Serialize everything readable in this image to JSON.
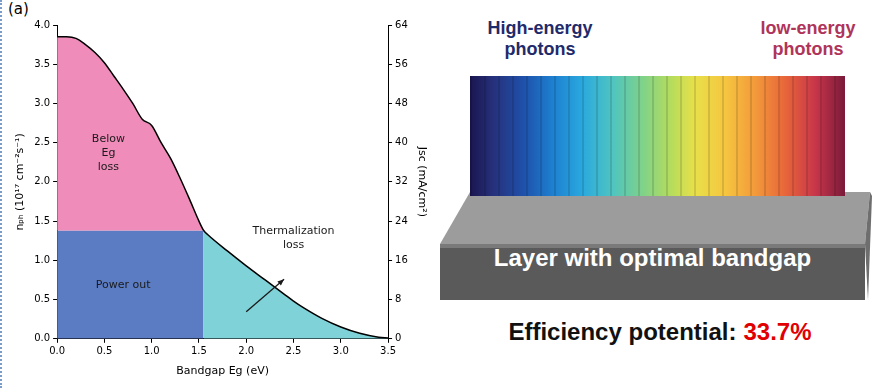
{
  "chart_data": {
    "type": "line",
    "panel_label": "(a)",
    "x": [
      0.0,
      0.1,
      0.2,
      0.3,
      0.4,
      0.5,
      0.6,
      0.7,
      0.8,
      0.9,
      1.0,
      1.1,
      1.2,
      1.3,
      1.4,
      1.5,
      1.55,
      1.6,
      1.8,
      2.0,
      2.2,
      2.4,
      2.5,
      2.6,
      2.8,
      3.0,
      3.2,
      3.4,
      3.5
    ],
    "values": [
      3.85,
      3.85,
      3.83,
      3.75,
      3.65,
      3.52,
      3.35,
      3.18,
      3.0,
      2.8,
      2.72,
      2.5,
      2.3,
      2.05,
      1.78,
      1.5,
      1.38,
      1.32,
      1.12,
      0.93,
      0.75,
      0.57,
      0.48,
      0.4,
      0.26,
      0.15,
      0.07,
      0.02,
      0.01
    ],
    "color": "#000000",
    "line_style": "solid",
    "xlabel": "Bandgap Eg (eV)",
    "ylabel": "nₚₕ (10¹⁷ cm⁻²s⁻¹)",
    "y2label": "Jsc (mA/cm²)",
    "xlim": [
      0,
      3.5
    ],
    "xticks": [
      {
        "value": 0,
        "label": "0.0"
      },
      0.5,
      {
        "value": 1,
        "label": "1.0"
      },
      1.5,
      {
        "value": 2,
        "label": "2.0"
      },
      2.5,
      {
        "value": 3,
        "label": "3.0"
      },
      3.5
    ],
    "ylim": [
      0,
      4
    ],
    "yticks": [
      {
        "value": 0,
        "label": "0.0"
      },
      0.5,
      {
        "value": 1,
        "label": "1.0"
      },
      1.5,
      {
        "value": 2,
        "label": "2.0"
      },
      2.5,
      {
        "value": 3,
        "label": "3.0"
      },
      3.5,
      {
        "value": 4,
        "label": "4.0"
      }
    ],
    "y2lim": [
      0,
      64
    ],
    "y2ticks": [
      0,
      8,
      16,
      24,
      32,
      40,
      48,
      56,
      64
    ],
    "optimal_bandgap": 1.55,
    "power_out_level": 1.38,
    "regions": [
      {
        "label": "Below Eg loss",
        "color": "#f08cba"
      },
      {
        "label": "Power out",
        "color": "#5b7cc2"
      },
      {
        "label": "Thermalization loss",
        "color": "#7fd2d8"
      }
    ],
    "grid": false
  },
  "right_panel": {
    "high_label": "High-energy photons",
    "low_label": "low-energy photons",
    "layer_label": "Layer with optimal bandgap",
    "efficiency_label": "Efficiency potential:",
    "efficiency_value": "33.7%"
  }
}
